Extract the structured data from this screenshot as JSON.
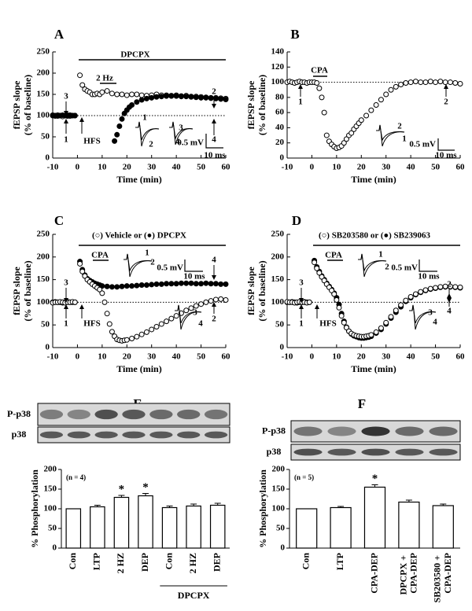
{
  "chart_data": [
    {
      "type": "scatter",
      "panel": "A",
      "xlabel": "Time (min)",
      "ylabel": [
        "fEPSP slope",
        "(% of baseline)"
      ],
      "xlim": [
        -10,
        60
      ],
      "xticks": [
        -10,
        0,
        10,
        20,
        30,
        40,
        50,
        60
      ],
      "ylim": [
        0,
        250
      ],
      "yticks": [
        0,
        50,
        100,
        150,
        200,
        250
      ],
      "reference_line": 100,
      "series": [
        {
          "marker": "open",
          "x": [
            -10,
            -9,
            -8,
            -7,
            -6,
            -5,
            -4,
            -3,
            -2,
            -1,
            1,
            2,
            3,
            4,
            5,
            6,
            7,
            8,
            9,
            10,
            12,
            14,
            16,
            18,
            20,
            22,
            24,
            26,
            28,
            30,
            32,
            34,
            36,
            38,
            40,
            42,
            44,
            46,
            48,
            50,
            52,
            54,
            56,
            58,
            60
          ],
          "values": [
            100,
            99,
            101,
            100,
            98,
            100,
            101,
            99,
            100,
            100,
            195,
            172,
            162,
            158,
            155,
            150,
            150,
            152,
            150,
            155,
            158,
            152,
            150,
            150,
            148,
            150,
            150,
            148,
            147,
            148,
            150,
            148,
            148,
            147,
            148,
            146,
            147,
            145,
            145,
            144,
            143,
            142,
            142,
            141,
            140
          ]
        },
        {
          "marker": "filled",
          "x": [
            -10,
            -9,
            -8,
            -7,
            -6,
            -5,
            -4,
            -3,
            -2,
            -1,
            15,
            16,
            17,
            18,
            19,
            20,
            21,
            22,
            24,
            26,
            28,
            30,
            32,
            34,
            36,
            38,
            40,
            42,
            44,
            46,
            48,
            50,
            52,
            54,
            56,
            58,
            60
          ],
          "values": [
            101,
            100,
            99,
            100,
            101,
            100,
            99,
            101,
            100,
            100,
            40,
            55,
            75,
            92,
            105,
            113,
            120,
            125,
            132,
            137,
            140,
            142,
            144,
            145,
            146,
            146,
            146,
            145,
            145,
            144,
            143,
            142,
            142,
            141,
            140,
            139,
            138
          ]
        }
      ],
      "annotations": [
        "DPCPX",
        "2 Hz",
        "HFS",
        "1",
        "3",
        "2",
        "4",
        "1",
        "2",
        "3",
        "4",
        "0.5 mV",
        "10 ms"
      ]
    },
    {
      "type": "scatter",
      "panel": "B",
      "xlabel": "Time (min)",
      "ylabel": [
        "fEPSP slope",
        "(% of baseline)"
      ],
      "xlim": [
        -10,
        60
      ],
      "xticks": [
        -10,
        0,
        10,
        20,
        30,
        40,
        50,
        60
      ],
      "ylim": [
        0,
        140
      ],
      "yticks": [
        0,
        20,
        40,
        60,
        80,
        100,
        120,
        140
      ],
      "reference_line": 100,
      "series": [
        {
          "marker": "open",
          "x": [
            -10,
            -9,
            -8,
            -7,
            -6,
            -5,
            -4,
            -3,
            -2,
            -1,
            0,
            1,
            2,
            3,
            4,
            5,
            6,
            7,
            8,
            9,
            10,
            11,
            12,
            13,
            14,
            15,
            16,
            17,
            18,
            19,
            20,
            22,
            24,
            26,
            28,
            30,
            32,
            34,
            36,
            38,
            40,
            42,
            44,
            46,
            48,
            50,
            52,
            54,
            56,
            58,
            60
          ],
          "values": [
            100,
            101,
            100,
            99,
            100,
            101,
            100,
            100,
            99,
            100,
            100,
            100,
            99,
            92,
            80,
            60,
            30,
            22,
            18,
            15,
            13,
            14,
            16,
            20,
            25,
            30,
            33,
            38,
            42,
            46,
            50,
            56,
            63,
            70,
            77,
            84,
            90,
            94,
            97,
            99,
            100,
            101,
            100,
            100,
            101,
            100,
            101,
            100,
            100,
            99,
            98
          ]
        }
      ],
      "annotations": [
        "CPA",
        "1",
        "2",
        "2",
        "1",
        "0.5 mV",
        "10 ms"
      ]
    },
    {
      "type": "scatter",
      "panel": "C",
      "xlabel": "Time (min)",
      "ylabel": [
        "fEPSP slope",
        "(% of baseline)"
      ],
      "xlim": [
        -10,
        60
      ],
      "xticks": [
        -10,
        0,
        10,
        20,
        30,
        40,
        50,
        60
      ],
      "ylim": [
        0,
        250
      ],
      "yticks": [
        0,
        50,
        100,
        150,
        200,
        250
      ],
      "reference_line": 100,
      "series": [
        {
          "marker": "filled",
          "x": [
            -10,
            -9,
            -8,
            -7,
            -6,
            -5,
            -4,
            -3,
            -2,
            -1,
            1,
            2,
            3,
            4,
            5,
            6,
            7,
            8,
            9,
            10,
            12,
            14,
            16,
            18,
            20,
            22,
            24,
            26,
            28,
            30,
            32,
            34,
            36,
            38,
            40,
            42,
            44,
            46,
            48,
            50,
            52,
            54,
            56,
            58,
            60
          ],
          "values": [
            100,
            101,
            100,
            100,
            99,
            100,
            101,
            100,
            100,
            100,
            190,
            172,
            160,
            152,
            148,
            145,
            142,
            140,
            138,
            136,
            135,
            134,
            134,
            135,
            136,
            136,
            137,
            138,
            138,
            139,
            140,
            140,
            141,
            141,
            141,
            142,
            142,
            142,
            141,
            141,
            142,
            141,
            141,
            140,
            140
          ]
        },
        {
          "marker": "open",
          "x": [
            -10,
            -9,
            -8,
            -7,
            -6,
            -5,
            -4,
            -3,
            -2,
            -1,
            1,
            2,
            3,
            4,
            5,
            6,
            7,
            8,
            9,
            10,
            11,
            12,
            13,
            14,
            15,
            16,
            17,
            18,
            19,
            20,
            22,
            24,
            26,
            28,
            30,
            32,
            34,
            36,
            38,
            40,
            42,
            44,
            46,
            48,
            50,
            52,
            54,
            56,
            58,
            60
          ],
          "values": [
            99,
            100,
            100,
            101,
            100,
            99,
            100,
            100,
            101,
            100,
            185,
            168,
            158,
            150,
            145,
            140,
            136,
            132,
            128,
            120,
            100,
            75,
            52,
            35,
            25,
            18,
            16,
            15,
            16,
            17,
            20,
            24,
            29,
            34,
            40,
            46,
            52,
            58,
            64,
            70,
            76,
            82,
            87,
            92,
            96,
            100,
            103,
            106,
            107,
            105
          ]
        }
      ],
      "annotations": [
        "(○) Vehicle or (●) DPCPX",
        "CPA",
        "1",
        "2",
        "0.5 mV",
        "10 ms",
        "3",
        "1",
        "HFS",
        "4",
        "2",
        "3",
        "4"
      ]
    },
    {
      "type": "scatter",
      "panel": "D",
      "xlabel": "Time (min)",
      "ylabel": [
        "fEPSP slope",
        "(% of baseline)"
      ],
      "xlim": [
        -10,
        60
      ],
      "xticks": [
        -10,
        0,
        10,
        20,
        30,
        40,
        50,
        60
      ],
      "ylim": [
        0,
        250
      ],
      "yticks": [
        0,
        50,
        100,
        150,
        200,
        250
      ],
      "reference_line": 100,
      "series": [
        {
          "marker": "filled",
          "x": [
            -10,
            -9,
            -8,
            -7,
            -6,
            -5,
            -4,
            -3,
            -2,
            -1,
            1,
            2,
            3,
            4,
            5,
            6,
            7,
            8,
            9,
            10,
            11,
            12,
            13,
            14,
            15,
            16,
            17,
            18,
            19,
            20,
            21,
            22,
            23,
            24,
            26,
            28,
            30,
            32,
            34,
            36,
            38,
            40,
            42,
            44,
            46,
            48,
            50,
            52,
            54,
            56,
            58,
            60
          ],
          "values": [
            100,
            100,
            101,
            100,
            99,
            100,
            100,
            101,
            100,
            100,
            192,
            178,
            168,
            158,
            150,
            142,
            135,
            128,
            120,
            110,
            95,
            75,
            58,
            45,
            36,
            30,
            26,
            24,
            22,
            21,
            21,
            22,
            23,
            25,
            32,
            40,
            52,
            65,
            78,
            90,
            102,
            110,
            117,
            122,
            126,
            129,
            131,
            133,
            134,
            134,
            133,
            132
          ]
        },
        {
          "marker": "open",
          "x": [
            -10,
            -9,
            -8,
            -7,
            -6,
            -5,
            -4,
            -3,
            -2,
            -1,
            1,
            2,
            3,
            4,
            5,
            6,
            7,
            8,
            9,
            10,
            11,
            12,
            13,
            14,
            15,
            16,
            17,
            18,
            19,
            20,
            21,
            22,
            23,
            24,
            26,
            28,
            30,
            32,
            34,
            36,
            38,
            40,
            42,
            44,
            46,
            48,
            50,
            52,
            54,
            56,
            58,
            60
          ],
          "values": [
            101,
            100,
            100,
            99,
            100,
            101,
            100,
            100,
            99,
            100,
            188,
            175,
            165,
            156,
            148,
            140,
            133,
            126,
            118,
            105,
            88,
            70,
            55,
            44,
            36,
            31,
            28,
            26,
            25,
            24,
            24,
            25,
            26,
            28,
            34,
            43,
            55,
            68,
            82,
            94,
            104,
            112,
            118,
            123,
            127,
            130,
            132,
            134,
            135,
            135,
            134,
            133
          ]
        }
      ],
      "annotations": [
        "(○) SB203580 or (●) SB239063",
        "CPA",
        "1",
        "2",
        "0.5 mV",
        "10 ms",
        "3",
        "1",
        "HFS",
        "2",
        "4",
        "3",
        "4"
      ]
    },
    {
      "type": "bar",
      "panel": "E",
      "blot_labels": [
        "P-p38",
        "p38"
      ],
      "ylabel": "% Phosphorylation",
      "categories": [
        "Con",
        "LTP",
        "2 HZ",
        "DEP",
        "Con",
        "2 HZ",
        "DEP"
      ],
      "values": [
        100,
        105,
        129,
        133,
        103,
        107,
        109
      ],
      "errors": [
        null,
        4,
        5,
        6,
        4,
        5,
        5
      ],
      "significance": [
        null,
        null,
        "*",
        "*",
        null,
        null,
        null
      ],
      "ylim": [
        0,
        200
      ],
      "yticks": [
        0,
        50,
        100,
        150,
        200
      ],
      "note": "(n = 4)",
      "group_label": "DPCPX"
    },
    {
      "type": "bar",
      "panel": "F",
      "blot_labels": [
        "P-p38",
        "p38"
      ],
      "ylabel": "% Phosphorylation",
      "categories": [
        "Con",
        "LTP",
        "CPA-DEP",
        "DPCPX + CPA-DEP",
        "SB203580 + CPA-DEP"
      ],
      "values": [
        100,
        103,
        155,
        117,
        108
      ],
      "errors": [
        null,
        3,
        6,
        5,
        4
      ],
      "significance": [
        null,
        null,
        "*",
        null,
        null
      ],
      "ylim": [
        0,
        200
      ],
      "yticks": [
        0,
        50,
        100,
        150,
        200
      ],
      "note": "(n = 5)"
    }
  ]
}
